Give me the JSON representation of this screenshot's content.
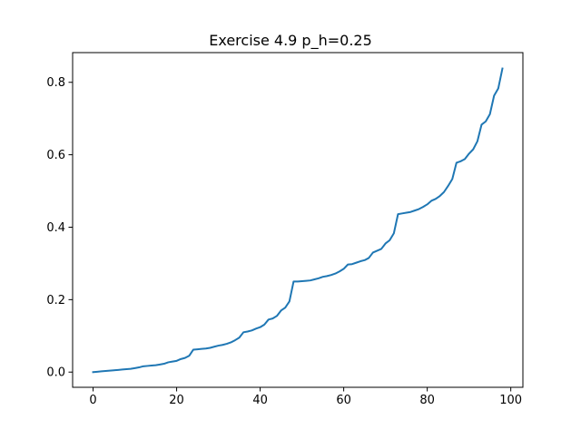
{
  "chart_data": {
    "type": "line",
    "title": "Exercise 4.9 p_h=0.25",
    "xlabel": "",
    "ylabel": "",
    "xlim": [
      -4.9,
      102.9
    ],
    "ylim": [
      -0.042,
      0.882
    ],
    "xticks": [
      0,
      20,
      40,
      60,
      80,
      100
    ],
    "xtick_labels": [
      "0",
      "20",
      "40",
      "60",
      "80",
      "100"
    ],
    "yticks": [
      0.0,
      0.2,
      0.4,
      0.6,
      0.8
    ],
    "ytick_labels": [
      "0.0",
      "0.2",
      "0.4",
      "0.6",
      "0.8"
    ],
    "grid": false,
    "legend": false,
    "series": [
      {
        "color": "#1f77b4",
        "x": [
          0,
          1,
          2,
          3,
          4,
          5,
          6,
          7,
          8,
          9,
          10,
          11,
          12,
          13,
          14,
          15,
          16,
          17,
          18,
          19,
          20,
          21,
          22,
          23,
          24,
          25,
          26,
          27,
          28,
          29,
          30,
          31,
          32,
          33,
          34,
          35,
          36,
          37,
          38,
          39,
          40,
          41,
          42,
          43,
          44,
          45,
          46,
          47,
          48,
          49,
          50,
          51,
          52,
          53,
          54,
          55,
          56,
          57,
          58,
          59,
          60,
          61,
          62,
          63,
          64,
          65,
          66,
          67,
          68,
          69,
          70,
          71,
          72,
          73,
          74,
          75,
          76,
          77,
          78,
          79,
          80,
          81,
          82,
          83,
          84,
          85,
          86,
          87,
          88,
          89,
          90,
          91,
          92,
          93,
          94,
          95,
          96,
          97,
          98
        ],
        "y": [
          0.0,
          0.001,
          0.002,
          0.003,
          0.004,
          0.005,
          0.006,
          0.007,
          0.008,
          0.009,
          0.011,
          0.013,
          0.016,
          0.017,
          0.018,
          0.019,
          0.021,
          0.023,
          0.027,
          0.029,
          0.031,
          0.036,
          0.039,
          0.045,
          0.062,
          0.063,
          0.064,
          0.065,
          0.067,
          0.07,
          0.073,
          0.075,
          0.078,
          0.082,
          0.088,
          0.095,
          0.11,
          0.112,
          0.115,
          0.12,
          0.124,
          0.131,
          0.145,
          0.148,
          0.155,
          0.17,
          0.178,
          0.195,
          0.25,
          0.25,
          0.251,
          0.252,
          0.253,
          0.256,
          0.259,
          0.263,
          0.265,
          0.268,
          0.272,
          0.278,
          0.285,
          0.297,
          0.298,
          0.302,
          0.306,
          0.309,
          0.315,
          0.33,
          0.335,
          0.34,
          0.355,
          0.364,
          0.383,
          0.436,
          0.438,
          0.44,
          0.442,
          0.446,
          0.45,
          0.456,
          0.463,
          0.473,
          0.478,
          0.486,
          0.497,
          0.514,
          0.533,
          0.578,
          0.582,
          0.588,
          0.603,
          0.615,
          0.637,
          0.683,
          0.692,
          0.712,
          0.763,
          0.783,
          0.838
        ]
      }
    ]
  }
}
